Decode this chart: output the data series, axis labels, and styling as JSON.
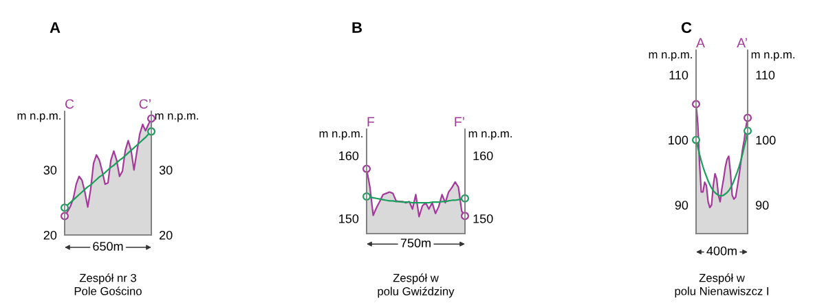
{
  "chart_data": [
    {
      "type": "area",
      "title": "A",
      "ylabel": "m n.p.m.",
      "y2label": "m n.p.m.",
      "categories": [
        null,
        null,
        null,
        null,
        null,
        null,
        null,
        null,
        null,
        null,
        null,
        null,
        null,
        null,
        null,
        null,
        null,
        null,
        null,
        null,
        null,
        null,
        null,
        null,
        null,
        null,
        null,
        null,
        null,
        null,
        null
      ],
      "ylim": [
        20,
        39
      ],
      "yticks": [
        20,
        30
      ],
      "y2lim": [
        20,
        39
      ],
      "y2ticks": [
        20,
        30
      ],
      "grid": false,
      "annotations": [
        "C",
        "C’",
        "650m",
        "Zespół nr 3\nPole Gościno"
      ],
      "series": [
        {
          "color": "#a5399b",
          "values": [
            22.9,
            23.6,
            24.4,
            25.6,
            27.8,
            29.0,
            28.4,
            26.6,
            24.3,
            27.0,
            31.0,
            32.3,
            31.5,
            29.8,
            27.8,
            28.0,
            31.5,
            32.9,
            31.5,
            29.0,
            29.8,
            33.0,
            34.5,
            33.0,
            30.0,
            32.8,
            35.5,
            37.0,
            36.0,
            37.0,
            37.9
          ]
        },
        {
          "type": "line",
          "color": "#1a9e5c",
          "values": [
            24.2,
            24.6,
            25.0,
            25.4,
            25.8,
            26.2,
            26.6,
            27.0,
            27.4,
            27.7,
            28.1,
            28.5,
            28.9,
            29.2,
            29.6,
            30.0,
            30.4,
            30.7,
            31.1,
            31.5,
            31.8,
            32.2,
            32.6,
            33.0,
            33.4,
            33.8,
            34.2,
            34.6,
            35.0,
            35.5,
            35.9
          ]
        },
        {
          "type": "scatter",
          "marker": "circle",
          "color": "#a5399b",
          "values": [
            22.9,
            null,
            null,
            null,
            null,
            null,
            null,
            null,
            null,
            null,
            null,
            null,
            null,
            null,
            null,
            null,
            null,
            null,
            null,
            null,
            null,
            null,
            null,
            null,
            null,
            null,
            null,
            null,
            null,
            null,
            37.9
          ]
        },
        {
          "type": "scatter",
          "marker": "circle",
          "color": "#1a9e5c",
          "values": [
            24.2,
            null,
            null,
            null,
            null,
            null,
            null,
            null,
            null,
            null,
            null,
            null,
            null,
            null,
            null,
            null,
            null,
            null,
            null,
            null,
            null,
            null,
            null,
            null,
            null,
            null,
            null,
            null,
            null,
            null,
            35.9
          ]
        }
      ]
    },
    {
      "type": "area",
      "title": "B",
      "ylabel": "m n.p.m.",
      "y2label": "m n.p.m.",
      "categories": [
        null,
        null,
        null,
        null,
        null,
        null,
        null,
        null,
        null,
        null,
        null,
        null,
        null,
        null,
        null,
        null,
        null,
        null,
        null,
        null,
        null,
        null,
        null,
        null,
        null,
        null,
        null,
        null,
        null,
        null,
        null
      ],
      "ylim": [
        147.6,
        164.2
      ],
      "yticks": [
        150,
        160
      ],
      "y2lim": [
        147.6,
        164.2
      ],
      "y2ticks": [
        150,
        160
      ],
      "grid": false,
      "annotations": [
        "F",
        "F’",
        "750m",
        "Zespół w\npolu Gwiździny"
      ],
      "series": [
        {
          "color": "#a5399b",
          "values": [
            157.9,
            155.0,
            150.5,
            151.7,
            152.7,
            153.8,
            154.0,
            154.2,
            154.0,
            152.8,
            152.7,
            152.7,
            152.5,
            152.7,
            151.5,
            153.8,
            150.3,
            152.0,
            152.5,
            151.5,
            152.5,
            150.8,
            151.9,
            153.8,
            152.5,
            154.2,
            154.9,
            155.8,
            155.0,
            151.2,
            150.4
          ]
        },
        {
          "type": "line",
          "color": "#1a9e5c",
          "values": [
            153.5,
            153.4,
            153.3,
            153.2,
            153.1,
            153.0,
            152.9,
            152.8,
            152.8,
            152.7,
            152.7,
            152.6,
            152.6,
            152.6,
            152.5,
            152.5,
            152.5,
            152.5,
            152.5,
            152.5,
            152.6,
            152.6,
            152.6,
            152.7,
            152.7,
            152.8,
            152.9,
            152.9,
            153.0,
            153.1,
            153.2
          ]
        },
        {
          "type": "scatter",
          "marker": "circle",
          "color": "#a5399b",
          "values": [
            157.9,
            null,
            null,
            null,
            null,
            null,
            null,
            null,
            null,
            null,
            null,
            null,
            null,
            null,
            null,
            null,
            null,
            null,
            null,
            null,
            null,
            null,
            null,
            null,
            null,
            null,
            null,
            null,
            null,
            null,
            150.4
          ]
        },
        {
          "type": "scatter",
          "marker": "circle",
          "color": "#1a9e5c",
          "values": [
            153.5,
            null,
            null,
            null,
            null,
            null,
            null,
            null,
            null,
            null,
            null,
            null,
            null,
            null,
            null,
            null,
            null,
            null,
            null,
            null,
            null,
            null,
            null,
            null,
            null,
            null,
            null,
            null,
            null,
            null,
            153.2
          ]
        }
      ]
    },
    {
      "type": "area",
      "title": "C",
      "ylabel": "m n.p.m.",
      "y2label": "m n.p.m.",
      "categories": [
        null,
        null,
        null,
        null,
        null,
        null,
        null,
        null,
        null,
        null,
        null,
        null,
        null,
        null,
        null,
        null,
        null,
        null,
        null,
        null,
        null,
        null,
        null,
        null,
        null,
        null,
        null,
        null,
        null,
        null,
        null
      ],
      "ylim": [
        85.6,
        113.8
      ],
      "yticks": [
        90,
        100,
        110
      ],
      "y2lim": [
        85.6,
        113.8
      ],
      "y2ticks": [
        90,
        100,
        110
      ],
      "grid": false,
      "annotations": [
        "A",
        "A’",
        "400m",
        "Zespół w\npolu Nienawiszcz I"
      ],
      "series": [
        {
          "color": "#a5399b",
          "values": [
            105.5,
            102.5,
            96.5,
            92.0,
            92.0,
            93.5,
            93.0,
            90.5,
            89.6,
            90.0,
            93.0,
            94.8,
            94.0,
            91.5,
            90.5,
            92.5,
            94.0,
            95.8,
            97.0,
            97.5,
            95.0,
            91.5,
            90.9,
            91.2,
            92.8,
            94.5,
            96.5,
            98.5,
            100.0,
            102.0,
            103.4
          ]
        },
        {
          "type": "line",
          "color": "#1a9e5c",
          "values": [
            100.0,
            98.9,
            97.8,
            96.8,
            95.9,
            95.1,
            94.4,
            93.7,
            93.1,
            92.6,
            92.2,
            91.9,
            91.7,
            91.5,
            91.4,
            91.4,
            91.5,
            91.7,
            91.9,
            92.2,
            92.6,
            93.1,
            93.7,
            94.4,
            95.1,
            95.9,
            96.8,
            97.8,
            98.9,
            100.0,
            101.4
          ]
        },
        {
          "type": "scatter",
          "marker": "circle",
          "color": "#a5399b",
          "values": [
            105.5,
            null,
            null,
            null,
            null,
            null,
            null,
            null,
            null,
            null,
            null,
            null,
            null,
            null,
            null,
            null,
            null,
            null,
            null,
            null,
            null,
            null,
            null,
            null,
            null,
            null,
            null,
            null,
            null,
            null,
            103.4
          ]
        },
        {
          "type": "scatter",
          "marker": "circle",
          "color": "#1a9e5c",
          "values": [
            100.0,
            null,
            null,
            null,
            null,
            null,
            null,
            null,
            null,
            null,
            null,
            null,
            null,
            null,
            null,
            null,
            null,
            null,
            null,
            null,
            null,
            null,
            null,
            null,
            null,
            null,
            null,
            null,
            null,
            null,
            101.4
          ]
        }
      ]
    }
  ]
}
